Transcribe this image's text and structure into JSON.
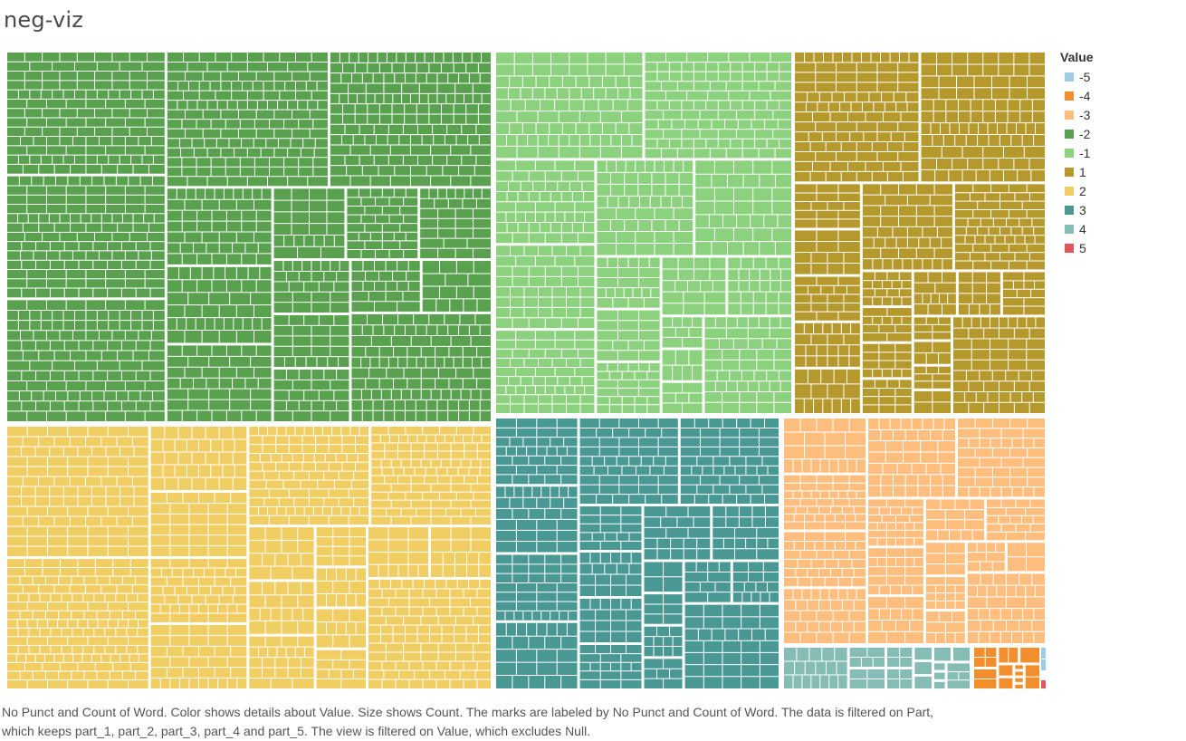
{
  "title": "neg-viz",
  "legend": {
    "title": "Value",
    "items": [
      {
        "label": "-5",
        "color": "#a0cbe8"
      },
      {
        "label": "-4",
        "color": "#f28e2b"
      },
      {
        "label": "-3",
        "color": "#ffbe7d"
      },
      {
        "label": "-2",
        "color": "#59a14f"
      },
      {
        "label": "-1",
        "color": "#8cd17d"
      },
      {
        "label": "1",
        "color": "#b6992d"
      },
      {
        "label": "2",
        "color": "#f1ce63"
      },
      {
        "label": "3",
        "color": "#499894"
      },
      {
        "label": "4",
        "color": "#86bcb6"
      },
      {
        "label": "5",
        "color": "#e15759"
      }
    ]
  },
  "caption": {
    "line1": "No Punct and Count of Word.  Color shows details about Value.  Size shows Count.  The marks are labeled by No Punct and Count of Word. The data is filtered on Part,",
    "line2": "which keeps part_1, part_2, part_3, part_4 and part_5. The view is filtered on Value, which excludes Null."
  },
  "chart_data": {
    "type": "treemap",
    "color_field": "Value",
    "size_field": "Count",
    "series": [
      {
        "name": "-2",
        "color": "#59a14f"
      },
      {
        "name": "2",
        "color": "#f1ce63"
      },
      {
        "name": "-1",
        "color": "#8cd17d"
      },
      {
        "name": "3",
        "color": "#499894"
      },
      {
        "name": "1",
        "color": "#b6992d"
      },
      {
        "name": "-3",
        "color": "#ffbe7d"
      },
      {
        "name": "4",
        "color": "#86bcb6"
      },
      {
        "name": "-4",
        "color": "#f28e2b"
      },
      {
        "name": "-5",
        "color": "#a0cbe8"
      },
      {
        "name": "5",
        "color": "#e15759"
      }
    ]
  }
}
